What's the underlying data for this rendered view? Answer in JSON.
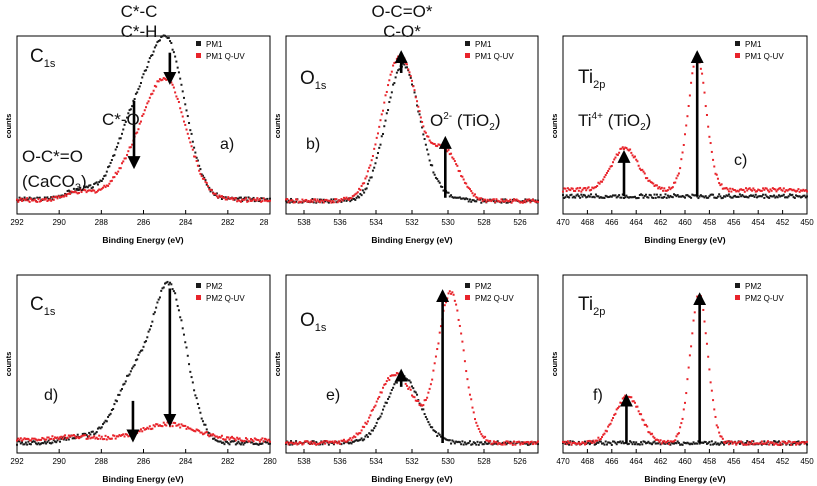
{
  "figure": {
    "xlabel": "Binding Energy (eV)",
    "ylabel": "counts"
  },
  "colors": {
    "ref": "#1a1a1a",
    "uv": "#e8242b",
    "arrow": "#000000"
  },
  "chart_data": [
    {
      "id": "a",
      "type": "scatter",
      "title_main": "C",
      "title_sub": "1s",
      "panel_label": "a)",
      "xlim": [
        292,
        280
      ],
      "xticks": [
        292,
        290,
        288,
        286,
        284,
        282
      ],
      "xtick_labels": [
        "292",
        "290",
        "288",
        "286",
        "284",
        "282"
      ],
      "last_tick_label": "28",
      "xlabel": "Binding Energy (eV)",
      "ylabel": "counts",
      "legend": "top-right",
      "series": [
        {
          "name": "PM1",
          "color": "#1a1a1a",
          "baseline": 0.03,
          "peaks": [
            {
              "center": 284.8,
              "height": 0.92,
              "width": 0.85
            },
            {
              "center": 286.4,
              "height": 0.5,
              "width": 0.9
            },
            {
              "center": 289.0,
              "height": 0.06,
              "width": 0.7
            }
          ]
        },
        {
          "name": "PM1 Q-UV",
          "color": "#e8242b",
          "baseline": 0.025,
          "peaks": [
            {
              "center": 284.9,
              "height": 0.74,
              "width": 0.95
            },
            {
              "center": 286.5,
              "height": 0.2,
              "width": 0.9
            },
            {
              "center": 289.0,
              "height": 0.05,
              "width": 0.7
            }
          ]
        }
      ],
      "arrows": [
        {
          "x": 286.45,
          "from": 0.66,
          "to": 0.24
        },
        {
          "x": 284.75,
          "from": 0.97,
          "to": 0.78
        }
      ],
      "annotations": [
        {
          "lines": [
            {
              "text": "C*-C"
            },
            {
              "text": "C*-H"
            }
          ]
        },
        {
          "lines": [
            {
              "text": "C*-O"
            }
          ]
        },
        {
          "lines": [
            {
              "text": "O-C*=O"
            }
          ]
        },
        {
          "lines": [
            {
              "text": "(CaCO",
              "sub": "3",
              "tail": ")"
            }
          ]
        }
      ]
    },
    {
      "id": "b",
      "type": "scatter",
      "title_main": "O",
      "title_sub": "1s",
      "panel_label": "b)",
      "xlim": [
        539,
        525
      ],
      "xticks": [
        538,
        536,
        534,
        532,
        530,
        528,
        526
      ],
      "xtick_labels": [
        "538",
        "536",
        "534",
        "532",
        "530",
        "528",
        "526"
      ],
      "xlabel": "Binding Energy (eV)",
      "ylabel": "counts",
      "legend": "top-right",
      "series": [
        {
          "name": "PM1",
          "color": "#1a1a1a",
          "baseline": 0.02,
          "peaks": [
            {
              "center": 532.5,
              "height": 0.87,
              "width": 0.95
            },
            {
              "center": 530.2,
              "height": 0.02,
              "width": 0.7
            }
          ]
        },
        {
          "name": "PM1 Q-UV",
          "color": "#e8242b",
          "baseline": 0.02,
          "peaks": [
            {
              "center": 532.65,
              "height": 0.93,
              "width": 1.0
            },
            {
              "center": 530.1,
              "height": 0.3,
              "width": 0.75
            }
          ]
        }
      ],
      "arrows": [
        {
          "x": 532.6,
          "from": 0.84,
          "to": 0.97
        },
        {
          "x": 530.15,
          "from": 0.04,
          "to": 0.42
        }
      ],
      "annotations": [
        {
          "lines": [
            {
              "text": "O-C=O*"
            },
            {
              "text": "C-O*"
            }
          ]
        },
        {
          "lines": [
            {
              "text": "O",
              "sup": "2-",
              "tail": " (TiO",
              "sub2": "2",
              "tail2": ")"
            }
          ]
        }
      ]
    },
    {
      "id": "c",
      "type": "scatter",
      "title_main": "Ti",
      "title_sub": "2p",
      "panel_label": "c)",
      "xlim": [
        470,
        450
      ],
      "xticks": [
        470,
        468,
        466,
        464,
        462,
        460,
        458,
        456,
        454,
        452,
        450
      ],
      "xtick_labels": [
        "470",
        "468",
        "466",
        "464",
        "462",
        "460",
        "458",
        "456",
        "454",
        "452",
        "450"
      ],
      "xlabel": "Binding Energy (eV)",
      "ylabel": "counts",
      "legend": "top-right",
      "series": [
        {
          "name": "PM1",
          "color": "#1a1a1a",
          "baseline": 0.05,
          "peaks": []
        },
        {
          "name": "PM1 Q-UV",
          "color": "#e8242b",
          "baseline": 0.09,
          "peaks": [
            {
              "center": 464.9,
              "height": 0.27,
              "width": 1.1
            },
            {
              "center": 459.0,
              "height": 0.85,
              "width": 0.75
            }
          ]
        }
      ],
      "arrows": [
        {
          "x": 465.0,
          "from": 0.05,
          "to": 0.33
        },
        {
          "x": 459.0,
          "from": 0.05,
          "to": 0.97
        }
      ],
      "annotations": [
        {
          "lines": [
            {
              "text": "Ti",
              "sup": "4+",
              "tail": " (TiO",
              "sub2": "2",
              "tail2": ")"
            }
          ]
        }
      ]
    },
    {
      "id": "d",
      "type": "scatter",
      "title_main": "C",
      "title_sub": "1s",
      "panel_label": "d)",
      "xlim": [
        292,
        280
      ],
      "xticks": [
        292,
        290,
        288,
        286,
        284,
        282,
        280
      ],
      "xtick_labels": [
        "292",
        "290",
        "288",
        "286",
        "284",
        "282",
        "280"
      ],
      "xlabel": "Binding Energy (eV)",
      "ylabel": "counts",
      "legend": "top-right",
      "series": [
        {
          "name": "PM2",
          "color": "#1a1a1a",
          "baseline": 0.0,
          "peaks": [
            {
              "center": 284.75,
              "height": 0.97,
              "width": 0.8
            },
            {
              "center": 286.5,
              "height": 0.4,
              "width": 0.85
            },
            {
              "center": 289.0,
              "height": 0.04,
              "width": 0.8
            }
          ]
        },
        {
          "name": "PM2 Q-UV",
          "color": "#e8242b",
          "baseline": 0.02,
          "peaks": [
            {
              "center": 284.8,
              "height": 0.1,
              "width": 1.3
            },
            {
              "center": 289.2,
              "height": 0.02,
              "width": 1.0
            }
          ]
        }
      ],
      "arrows": [
        {
          "x": 286.5,
          "from": 0.27,
          "to": 0.02
        },
        {
          "x": 284.75,
          "from": 0.99,
          "to": 0.12
        }
      ],
      "annotations": []
    },
    {
      "id": "e",
      "type": "scatter",
      "title_main": "O",
      "title_sub": "1s",
      "panel_label": "e)",
      "xlim": [
        539,
        525
      ],
      "xticks": [
        538,
        536,
        534,
        532,
        530,
        528,
        526
      ],
      "xtick_labels": [
        "538",
        "536",
        "534",
        "532",
        "530",
        "528",
        "526"
      ],
      "xlabel": "Binding Energy (eV)",
      "ylabel": "counts",
      "legend": "top-right",
      "series": [
        {
          "name": "PM2",
          "color": "#1a1a1a",
          "baseline": 0.0,
          "peaks": [
            {
              "center": 532.5,
              "height": 0.42,
              "width": 0.95
            }
          ]
        },
        {
          "name": "PM2 Q-UV",
          "color": "#e8242b",
          "baseline": 0.0,
          "peaks": [
            {
              "center": 532.9,
              "height": 0.44,
              "width": 1.05
            },
            {
              "center": 529.85,
              "height": 0.96,
              "width": 0.72
            }
          ]
        }
      ],
      "arrows": [
        {
          "x": 532.6,
          "from": 0.36,
          "to": 0.46
        },
        {
          "x": 530.3,
          "from": 0.0,
          "to": 0.97
        }
      ],
      "annotations": []
    },
    {
      "id": "f",
      "type": "scatter",
      "title_main": "Ti",
      "title_sub": "2p",
      "panel_label": "f)",
      "xlim": [
        470,
        450
      ],
      "xticks": [
        470,
        468,
        466,
        464,
        462,
        460,
        458,
        456,
        454,
        452,
        450
      ],
      "xtick_labels": [
        "470",
        "468",
        "466",
        "464",
        "462",
        "460",
        "458",
        "456",
        "454",
        "452",
        "450"
      ],
      "xlabel": "Binding Energy (eV)",
      "ylabel": "counts",
      "legend": "top-right",
      "series": [
        {
          "name": "PM2",
          "color": "#1a1a1a",
          "baseline": 0.0,
          "peaks": []
        },
        {
          "name": "PM2 Q-UV",
          "color": "#e8242b",
          "baseline": 0.0,
          "peaks": [
            {
              "center": 464.7,
              "height": 0.3,
              "width": 1.05
            },
            {
              "center": 458.85,
              "height": 0.95,
              "width": 0.72
            }
          ]
        }
      ],
      "arrows": [
        {
          "x": 464.8,
          "from": 0.0,
          "to": 0.3
        },
        {
          "x": 458.8,
          "from": 0.0,
          "to": 0.95
        }
      ],
      "annotations": []
    }
  ]
}
